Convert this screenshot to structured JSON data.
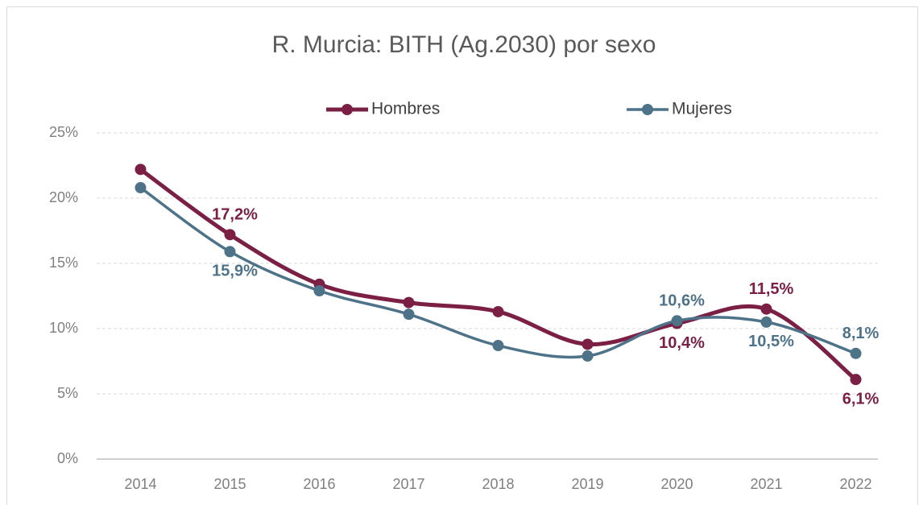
{
  "chart_data": {
    "type": "line",
    "title": "R. Murcia: BITH (Ag.2030) por sexo",
    "categories": [
      "2014",
      "2015",
      "2016",
      "2017",
      "2018",
      "2019",
      "2020",
      "2021",
      "2022"
    ],
    "series": [
      {
        "name": "Hombres",
        "color": "#7b1f45",
        "values": [
          22.2,
          17.2,
          13.4,
          12.0,
          11.3,
          8.8,
          10.4,
          11.5,
          6.1
        ],
        "value_labels": [
          null,
          "17,2%",
          null,
          null,
          null,
          null,
          "10,4%",
          "11,5%",
          "6,1%"
        ]
      },
      {
        "name": "Mujeres",
        "color": "#4e7389",
        "values": [
          20.8,
          15.9,
          12.9,
          11.1,
          8.7,
          7.9,
          10.6,
          10.5,
          8.1
        ],
        "value_labels": [
          null,
          "15,9%",
          null,
          null,
          null,
          null,
          "10,6%",
          "10,5%",
          "8,1%"
        ]
      }
    ],
    "ylim": [
      0,
      25
    ],
    "yticks": [
      {
        "value": 0,
        "label": "0%"
      },
      {
        "value": 5,
        "label": "5%"
      },
      {
        "value": 10,
        "label": "10%"
      },
      {
        "value": 15,
        "label": "15%"
      },
      {
        "value": 20,
        "label": "20%"
      },
      {
        "value": 25,
        "label": "25%"
      }
    ],
    "grid": true,
    "legend": "top",
    "smooth": true
  }
}
